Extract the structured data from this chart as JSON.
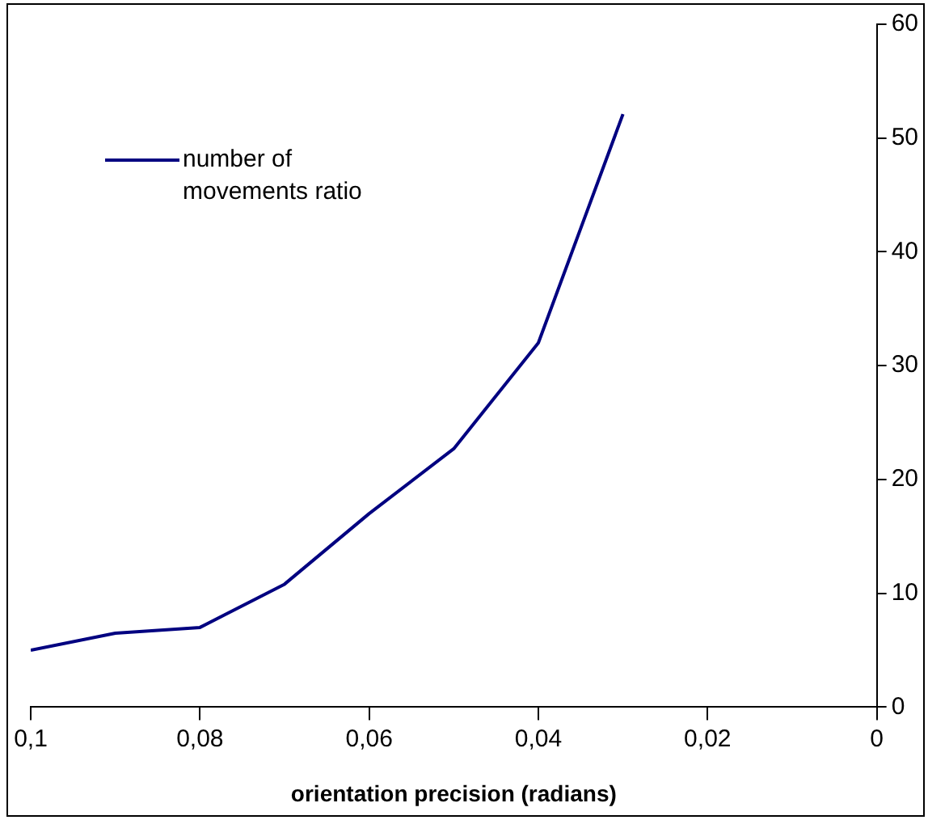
{
  "chart_data": {
    "type": "line",
    "xlabel": "orientation precision (radians)",
    "x": [
      0.1,
      0.09,
      0.08,
      0.07,
      0.06,
      0.05,
      0.04,
      0.03
    ],
    "series": [
      {
        "name": "number of\nmovements ratio",
        "color": "#000080",
        "values": [
          5,
          6.5,
          7,
          10.8,
          17,
          22.7,
          32,
          52.1
        ]
      }
    ],
    "xlim": [
      0.1,
      0
    ],
    "xticks": [
      {
        "value": 0.1,
        "label": "0,1"
      },
      {
        "value": 0.08,
        "label": "0,08"
      },
      {
        "value": 0.06,
        "label": "0,06"
      },
      {
        "value": 0.04,
        "label": "0,04"
      },
      {
        "value": 0.02,
        "label": "0,02"
      },
      {
        "value": 0,
        "label": "0"
      }
    ],
    "ylim": [
      0,
      60
    ],
    "yticks": [
      0,
      10,
      20,
      30,
      40,
      50,
      60
    ],
    "grid": false,
    "legend": "top left",
    "marker": "none",
    "line_style": "solid"
  }
}
